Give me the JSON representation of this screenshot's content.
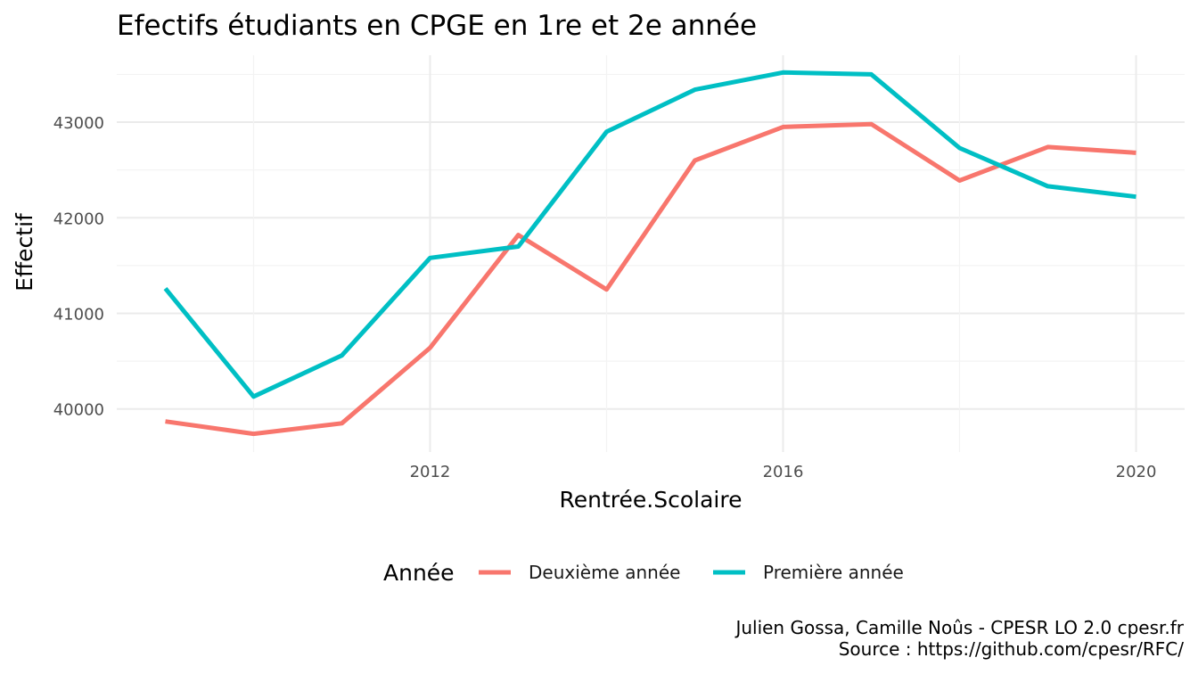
{
  "chart_data": {
    "type": "line",
    "title": "Efectifs étudiants en CPGE en 1re et 2e année",
    "xlabel": "Rentrée.Scolaire",
    "ylabel": "Effectif",
    "x": [
      2009,
      2010,
      2011,
      2012,
      2013,
      2014,
      2015,
      2016,
      2017,
      2018,
      2019,
      2020
    ],
    "xlim": [
      2008.45,
      2020.55
    ],
    "ylim": [
      39550,
      43700
    ],
    "x_ticks": [
      2012,
      2016,
      2020
    ],
    "x_tick_labels": [
      "2012",
      "2016",
      "2020"
    ],
    "y_ticks": [
      40000,
      41000,
      42000,
      43000
    ],
    "y_tick_labels": [
      "40000",
      "41000",
      "42000",
      "43000"
    ],
    "grid": true,
    "legend_position": "bottom",
    "legend_title": "Année",
    "series": [
      {
        "name": "Deuxième année",
        "color": "#F8766D",
        "values": [
          39870,
          39740,
          39850,
          40640,
          41820,
          41250,
          42600,
          42950,
          42980,
          42390,
          42740,
          42680
        ]
      },
      {
        "name": "Première année",
        "color": "#00BFC4",
        "values": [
          41260,
          40130,
          40560,
          41580,
          41700,
          42900,
          43340,
          43520,
          43500,
          42730,
          42330,
          42220
        ]
      }
    ],
    "caption": [
      "Julien Gossa, Camille Noûs - CPESR LO 2.0 cpesr.fr",
      "Source : https://github.com/cpesr/RFC/"
    ]
  }
}
